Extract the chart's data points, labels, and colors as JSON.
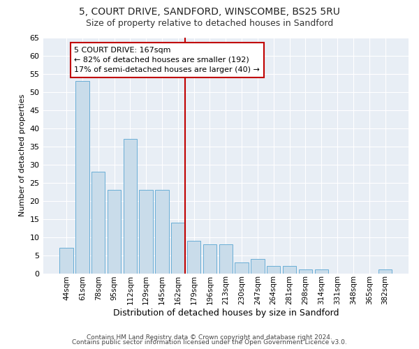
{
  "title1": "5, COURT DRIVE, SANDFORD, WINSCOMBE, BS25 5RU",
  "title2": "Size of property relative to detached houses in Sandford",
  "xlabel": "Distribution of detached houses by size in Sandford",
  "ylabel": "Number of detached properties",
  "categories": [
    "44sqm",
    "61sqm",
    "78sqm",
    "95sqm",
    "112sqm",
    "129sqm",
    "145sqm",
    "162sqm",
    "179sqm",
    "196sqm",
    "213sqm",
    "230sqm",
    "247sqm",
    "264sqm",
    "281sqm",
    "298sqm",
    "314sqm",
    "331sqm",
    "348sqm",
    "365sqm",
    "382sqm"
  ],
  "values": [
    7,
    53,
    28,
    23,
    37,
    23,
    23,
    14,
    9,
    8,
    8,
    3,
    4,
    2,
    2,
    1,
    1,
    0,
    0,
    0,
    1
  ],
  "bar_color": "#c9dcea",
  "bar_edge_color": "#6aaed6",
  "highlight_color": "#c00000",
  "highlight_index": 7,
  "annotation_title": "5 COURT DRIVE: 167sqm",
  "annotation_line1": "← 82% of detached houses are smaller (192)",
  "annotation_line2": "17% of semi-detached houses are larger (40) →",
  "ylim": [
    0,
    65
  ],
  "yticks": [
    0,
    5,
    10,
    15,
    20,
    25,
    30,
    35,
    40,
    45,
    50,
    55,
    60,
    65
  ],
  "footer1": "Contains HM Land Registry data © Crown copyright and database right 2024.",
  "footer2": "Contains public sector information licensed under the Open Government Licence v3.0.",
  "background_color": "#ffffff",
  "plot_bg_color": "#e8eef5"
}
